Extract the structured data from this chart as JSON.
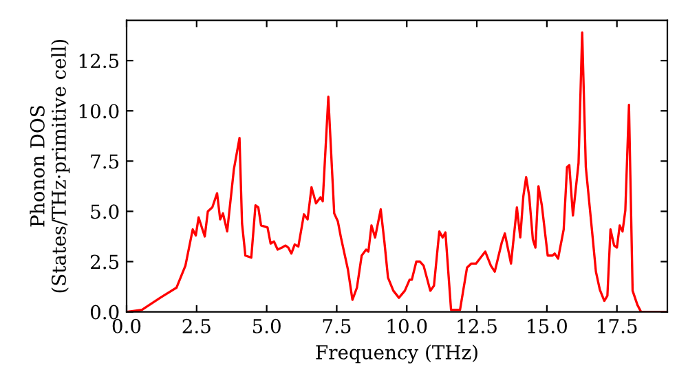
{
  "chart_data": {
    "type": "line",
    "xlabel": "Frequency (THz)",
    "ylabel": "Phonon DOS\n(States/THz·primitive cell)",
    "x": [
      0.0,
      0.55,
      1.2,
      1.78,
      2.1,
      2.36,
      2.47,
      2.57,
      2.79,
      2.9,
      3.06,
      3.23,
      3.34,
      3.44,
      3.59,
      3.83,
      4.03,
      4.12,
      4.24,
      4.45,
      4.6,
      4.7,
      4.8,
      5.03,
      5.14,
      5.26,
      5.39,
      5.55,
      5.67,
      5.77,
      5.88,
      6.0,
      6.13,
      6.33,
      6.46,
      6.6,
      6.76,
      6.92,
      7.0,
      7.2,
      7.41,
      7.54,
      7.65,
      7.9,
      8.06,
      8.22,
      8.39,
      8.55,
      8.63,
      8.74,
      8.87,
      9.07,
      9.2,
      9.33,
      9.52,
      9.72,
      9.93,
      10.1,
      10.18,
      10.34,
      10.47,
      10.6,
      10.84,
      10.97,
      11.16,
      11.28,
      11.38,
      11.58,
      11.9,
      12.15,
      12.3,
      12.47,
      12.8,
      13.0,
      13.14,
      13.39,
      13.5,
      13.72,
      13.93,
      14.05,
      14.16,
      14.26,
      14.37,
      14.5,
      14.59,
      14.7,
      14.82,
      15.03,
      15.2,
      15.28,
      15.4,
      15.6,
      15.72,
      15.8,
      15.93,
      16.03,
      16.13,
      16.26,
      16.39,
      16.6,
      16.75,
      16.89,
      17.05,
      17.16,
      17.27,
      17.4,
      17.5,
      17.6,
      17.7,
      17.8,
      17.93,
      18.06,
      18.23,
      18.36,
      19.3
    ],
    "series": [
      {
        "color": "#ff0000",
        "values": [
          0.0,
          0.1,
          0.7,
          1.2,
          2.3,
          4.1,
          3.8,
          4.7,
          3.75,
          5.0,
          5.2,
          5.9,
          4.6,
          4.9,
          4.0,
          7.1,
          8.65,
          4.4,
          2.8,
          2.7,
          5.3,
          5.2,
          4.3,
          4.2,
          3.4,
          3.5,
          3.1,
          3.2,
          3.3,
          3.2,
          2.9,
          3.35,
          3.25,
          4.85,
          4.6,
          6.2,
          5.4,
          5.7,
          5.5,
          10.7,
          4.9,
          4.5,
          3.7,
          2.1,
          0.6,
          1.2,
          2.8,
          3.1,
          3.0,
          4.3,
          3.7,
          5.1,
          3.5,
          1.7,
          1.05,
          0.7,
          1.05,
          1.6,
          1.6,
          2.5,
          2.5,
          2.3,
          1.05,
          1.3,
          4.0,
          3.7,
          3.95,
          0.1,
          0.1,
          2.2,
          2.4,
          2.4,
          3.0,
          2.3,
          2.0,
          3.45,
          3.9,
          2.4,
          5.2,
          3.7,
          5.75,
          6.7,
          5.75,
          3.6,
          3.2,
          6.25,
          5.3,
          2.8,
          2.8,
          2.9,
          2.65,
          4.1,
          7.2,
          7.3,
          4.8,
          6.1,
          7.4,
          13.9,
          7.2,
          4.2,
          2.0,
          1.1,
          0.55,
          0.8,
          4.1,
          3.3,
          3.2,
          4.3,
          4.0,
          5.05,
          10.3,
          1.05,
          0.35,
          0.0,
          0.0
        ]
      }
    ],
    "xlim": [
      0,
      19.3
    ],
    "ylim": [
      0,
      14.5
    ],
    "xticks": [
      {
        "value": 0,
        "label": "0.0"
      },
      2.5,
      {
        "value": 5,
        "label": "5.0"
      },
      7.5,
      {
        "value": 10,
        "label": "10.0"
      },
      12.5,
      {
        "value": 15,
        "label": "15.0"
      },
      17.5
    ],
    "yticks": [
      {
        "value": 0,
        "label": "0.0"
      },
      2.5,
      {
        "value": 5,
        "label": "5.0"
      },
      7.5,
      {
        "value": 10,
        "label": "10.0"
      },
      12.5
    ],
    "marker": "none",
    "line_style": "solid"
  }
}
